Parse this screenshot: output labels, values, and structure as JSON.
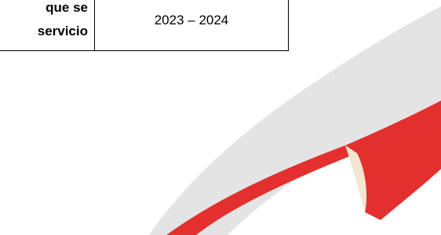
{
  "table": {
    "label_lines": [
      "que se",
      "servicio"
    ],
    "period": "2023 – 2024"
  }
}
